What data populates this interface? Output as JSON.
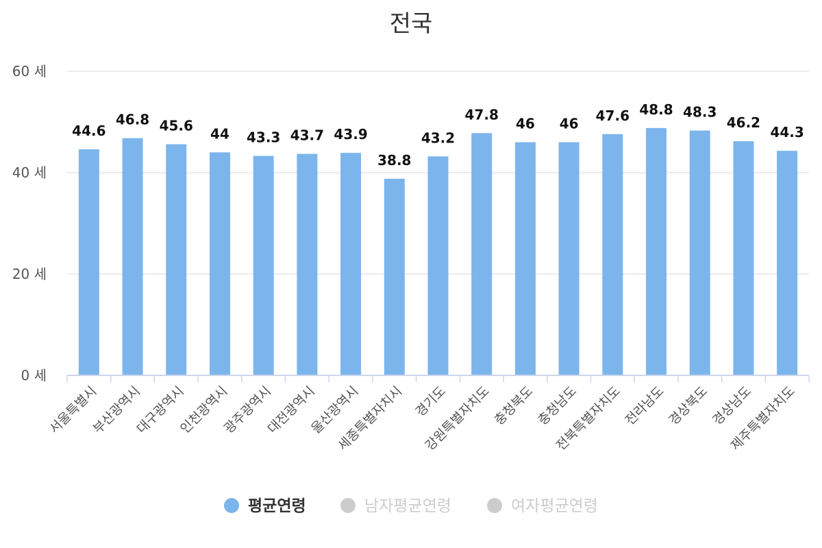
{
  "chart_data": {
    "type": "bar",
    "title": "전국",
    "xlabel": "",
    "ylabel": "",
    "ylim": [
      0,
      60
    ],
    "yticks": [
      {
        "value": 0,
        "label": "0 세"
      },
      {
        "value": 20,
        "label": "20 세"
      },
      {
        "value": 40,
        "label": "40 세"
      },
      {
        "value": 60,
        "label": "60 세"
      }
    ],
    "grid": true,
    "categories": [
      "서울특별시",
      "부산광역시",
      "대구광역시",
      "인천광역시",
      "광주광역시",
      "대전광역시",
      "울산광역시",
      "세종특별자치시",
      "경기도",
      "강원특별자치도",
      "충청북도",
      "충청남도",
      "전북특별자치도",
      "전라남도",
      "경상북도",
      "경상남도",
      "제주특별자치도"
    ],
    "series": [
      {
        "name": "평균연령",
        "color": "#7cb5ec",
        "visible": true,
        "values": [
          44.6,
          46.8,
          45.6,
          44,
          43.3,
          43.7,
          43.9,
          38.8,
          43.2,
          47.8,
          46,
          46,
          47.6,
          48.8,
          48.3,
          46.2,
          44.3
        ],
        "labels": [
          "44.6",
          "46.8",
          "45.6",
          "44",
          "43.3",
          "43.7",
          "43.9",
          "38.8",
          "43.2",
          "47.8",
          "46",
          "46",
          "47.6",
          "48.8",
          "48.3",
          "46.2",
          "44.3"
        ]
      },
      {
        "name": "남자평균연령",
        "color": "#cccccc",
        "visible": false
      },
      {
        "name": "여자평균연령",
        "color": "#cccccc",
        "visible": false
      }
    ],
    "legend": {
      "position": "bottom-center",
      "items": [
        {
          "label": "평균연령",
          "color": "#7cb5ec",
          "text_color": "#333333",
          "active": true
        },
        {
          "label": "남자평균연령",
          "color": "#cccccc",
          "text_color": "#cccccc",
          "active": false
        },
        {
          "label": "여자평균연령",
          "color": "#cccccc",
          "text_color": "#cccccc",
          "active": false
        }
      ]
    },
    "colors": {
      "gridline": "#e6e6e6",
      "axis": "#ccd6eb"
    }
  }
}
